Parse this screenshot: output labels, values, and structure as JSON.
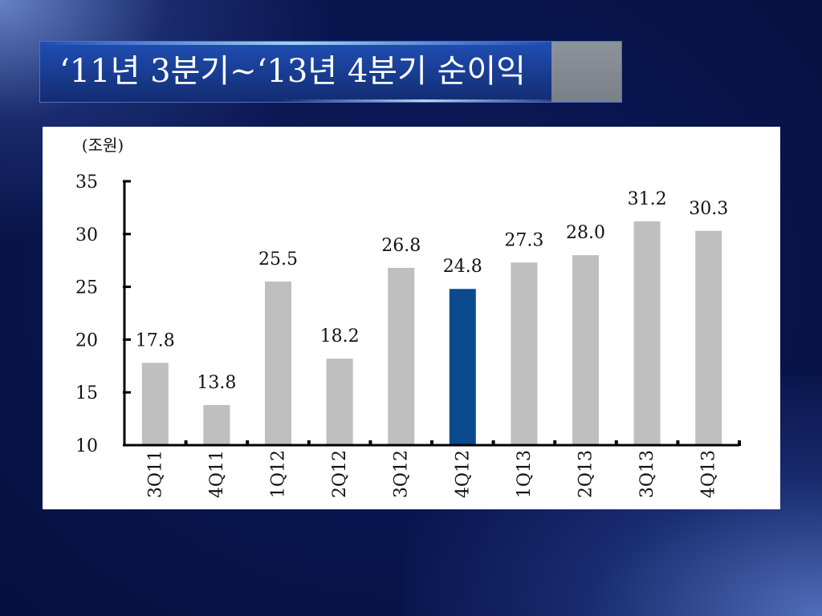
{
  "slide": {
    "title": "‘11년 3분기~‘13년 4분기 순이익"
  },
  "colors": {
    "bar_default": "#bfbfbf",
    "bar_highlight": "#0a4a8f",
    "axis": "#000000"
  },
  "chart_data": {
    "type": "bar",
    "unit_label": "(조원)",
    "categories": [
      "3Q11",
      "4Q11",
      "1Q12",
      "2Q12",
      "3Q12",
      "4Q12",
      "1Q13",
      "2Q13",
      "3Q13",
      "4Q13"
    ],
    "values": [
      17.8,
      13.8,
      25.5,
      18.2,
      26.8,
      24.8,
      27.3,
      28.0,
      31.2,
      30.3
    ],
    "value_labels": [
      "17.8",
      "13.8",
      "25.5",
      "18.2",
      "26.8",
      "24.8",
      "27.3",
      "28.0",
      "31.2",
      "30.3"
    ],
    "highlight_category": "4Q12",
    "ylim": [
      10,
      35
    ],
    "yticks": [
      10,
      15,
      20,
      25,
      30,
      35
    ],
    "grid": false,
    "legend": "none"
  }
}
